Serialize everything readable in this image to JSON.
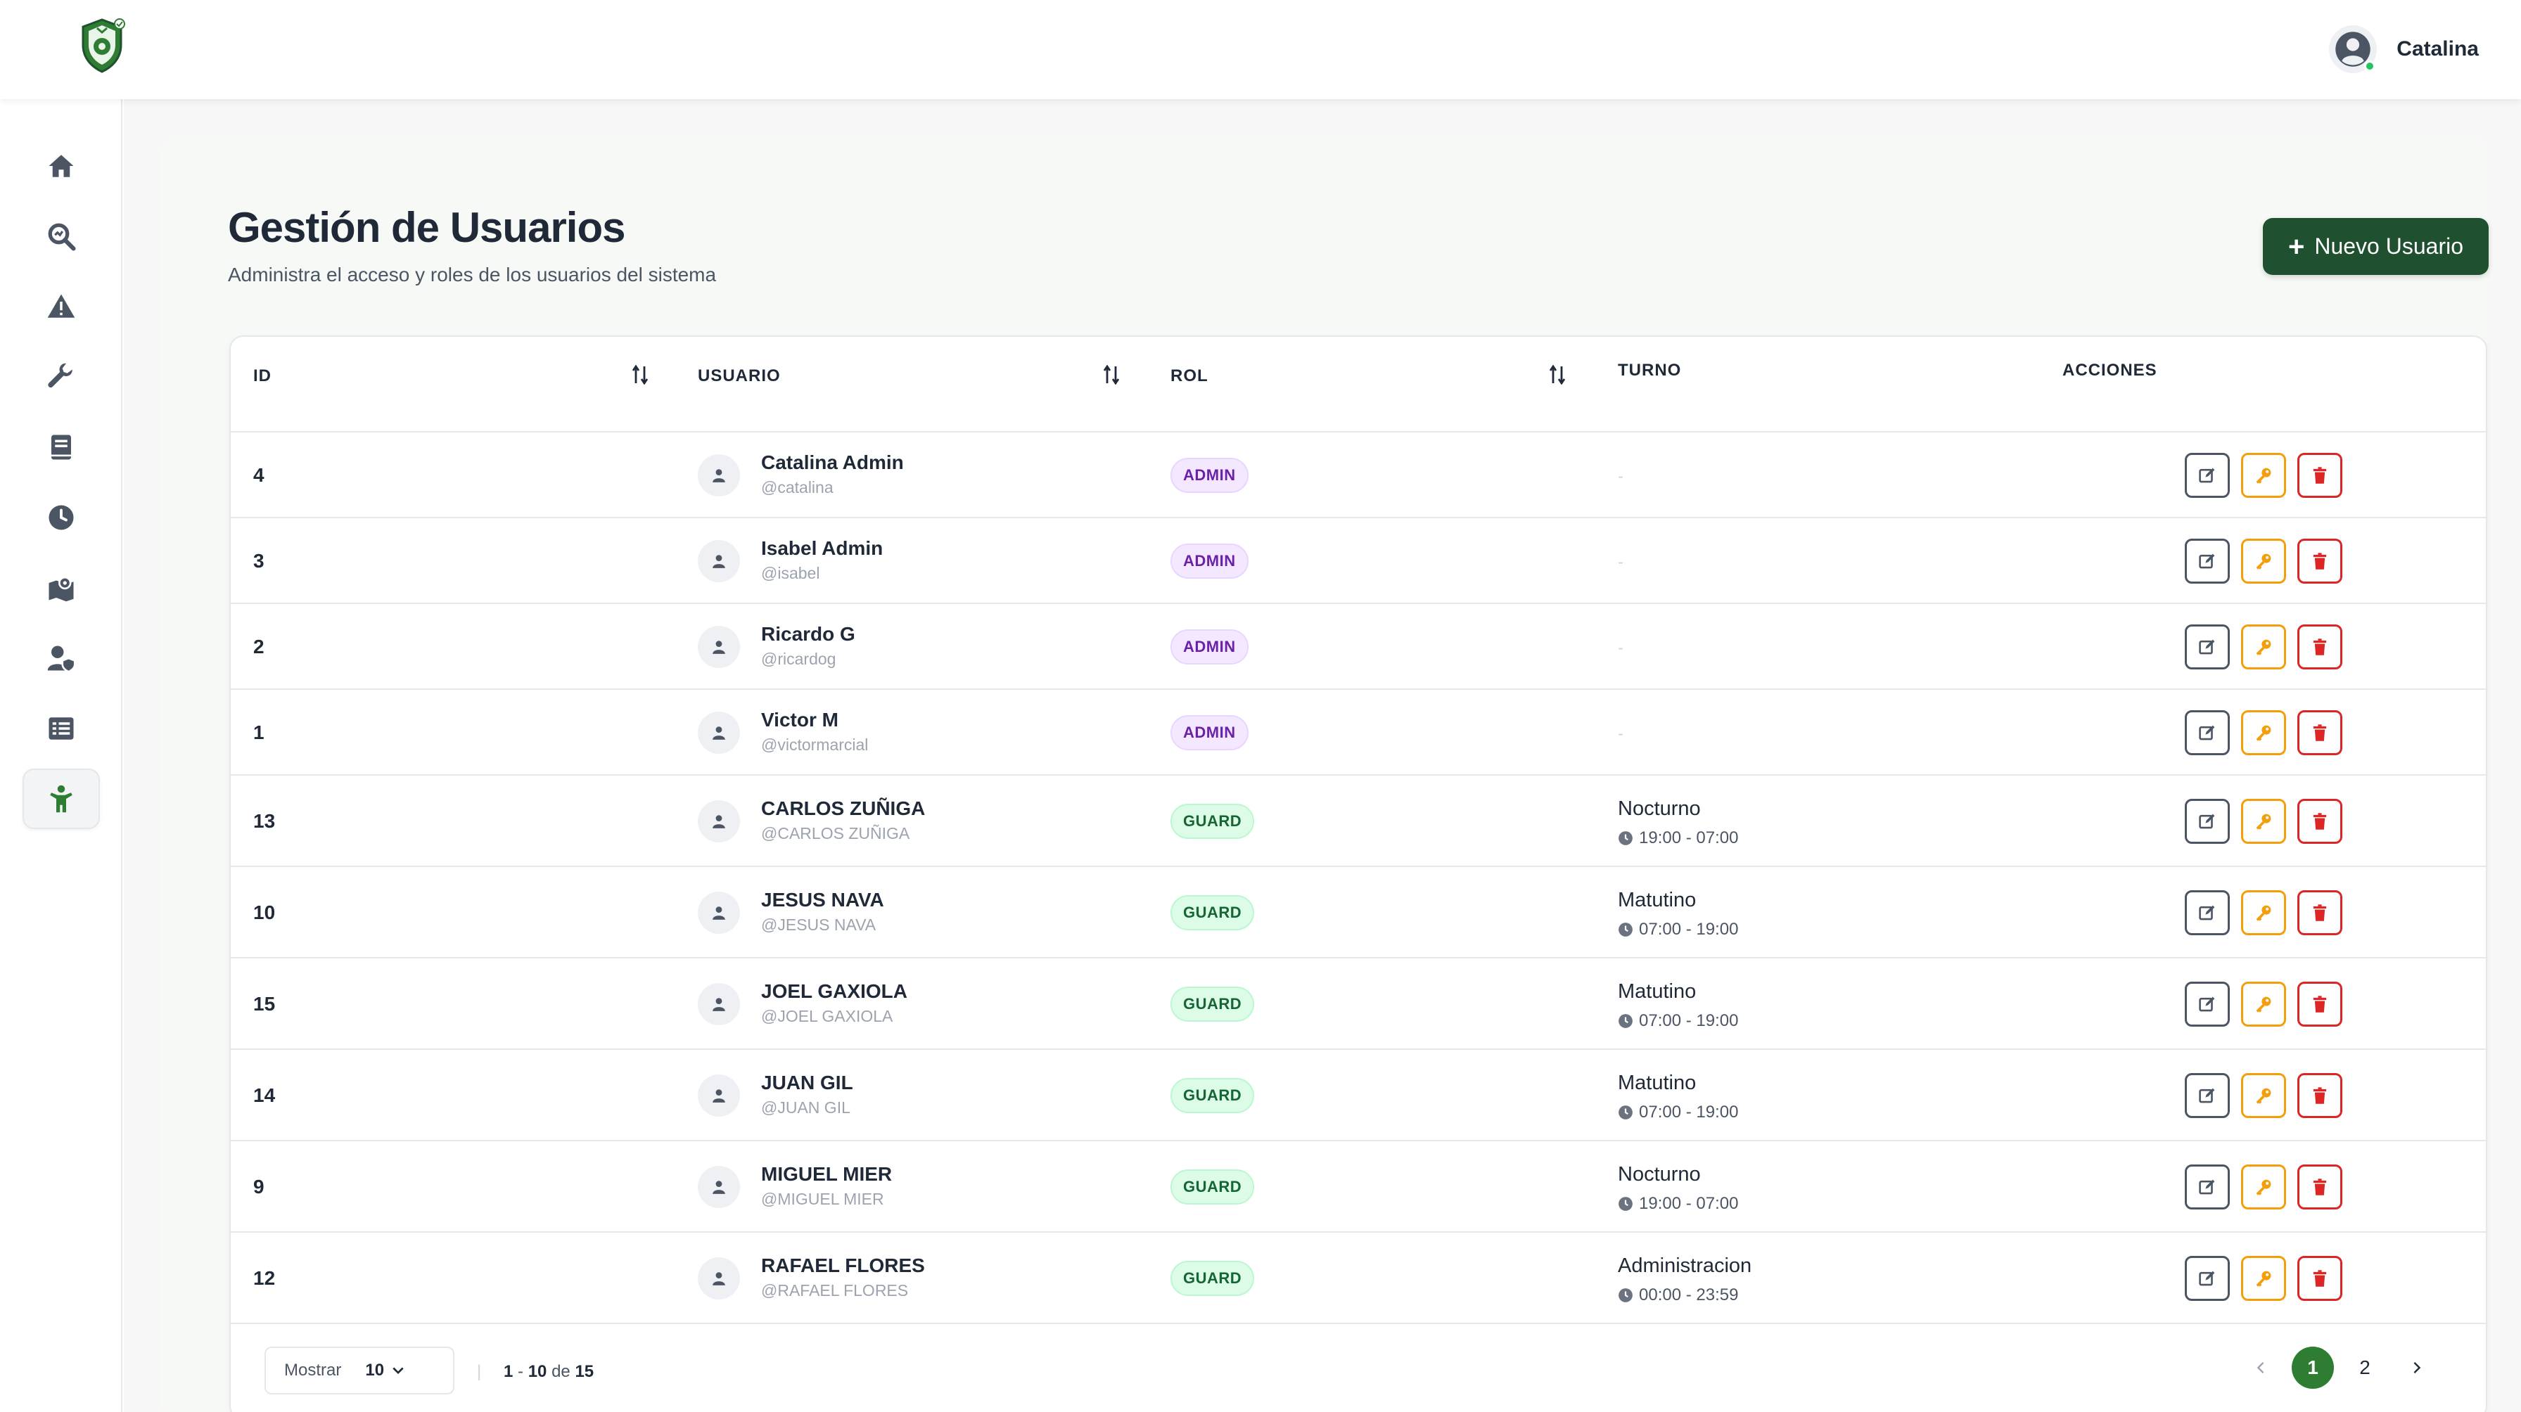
{
  "topbar": {
    "user": {
      "name": "Catalina",
      "status": "online"
    }
  },
  "sidebar": {
    "items": [
      {
        "icon": "home-icon",
        "active": false
      },
      {
        "icon": "search-analytics-icon",
        "active": false
      },
      {
        "icon": "warning-icon",
        "active": false
      },
      {
        "icon": "wrench-icon",
        "active": false
      },
      {
        "icon": "book-icon",
        "active": false
      },
      {
        "icon": "clock-icon",
        "active": false
      },
      {
        "icon": "map-location-icon",
        "active": false
      },
      {
        "icon": "user-shield-icon",
        "active": false
      },
      {
        "icon": "list-icon",
        "active": false
      },
      {
        "icon": "person-icon",
        "active": true
      }
    ]
  },
  "page": {
    "title": "Gestión de Usuarios",
    "subtitle": "Administra el acceso y roles de los usuarios del sistema",
    "new_button_label": "Nuevo Usuario"
  },
  "table": {
    "columns": {
      "id": "ID",
      "user": "USUARIO",
      "role": "ROL",
      "shift": "TURNO",
      "actions": "ACCIONES"
    },
    "rows": [
      {
        "id": "4",
        "name": "Catalina Admin",
        "handle": "@catalina",
        "role": "ADMIN",
        "shift": "-",
        "hours": ""
      },
      {
        "id": "3",
        "name": "Isabel Admin",
        "handle": "@isabel",
        "role": "ADMIN",
        "shift": "-",
        "hours": ""
      },
      {
        "id": "2",
        "name": "Ricardo G",
        "handle": "@ricardog",
        "role": "ADMIN",
        "shift": "-",
        "hours": ""
      },
      {
        "id": "1",
        "name": "Victor M",
        "handle": "@victormarcial",
        "role": "ADMIN",
        "shift": "-",
        "hours": ""
      },
      {
        "id": "13",
        "name": "CARLOS ZUÑIGA",
        "handle": "@CARLOS ZUÑIGA",
        "role": "GUARD",
        "shift": "Nocturno",
        "hours": "19:00 - 07:00"
      },
      {
        "id": "10",
        "name": "JESUS NAVA",
        "handle": "@JESUS NAVA",
        "role": "GUARD",
        "shift": "Matutino",
        "hours": "07:00 - 19:00"
      },
      {
        "id": "15",
        "name": "JOEL GAXIOLA",
        "handle": "@JOEL GAXIOLA",
        "role": "GUARD",
        "shift": "Matutino",
        "hours": "07:00 - 19:00"
      },
      {
        "id": "14",
        "name": "JUAN GIL",
        "handle": "@JUAN GIL",
        "role": "GUARD",
        "shift": "Matutino",
        "hours": "07:00 - 19:00"
      },
      {
        "id": "9",
        "name": "MIGUEL MIER",
        "handle": "@MIGUEL MIER",
        "role": "GUARD",
        "shift": "Nocturno",
        "hours": "19:00 - 07:00"
      },
      {
        "id": "12",
        "name": "RAFAEL FLORES",
        "handle": "@RAFAEL FLORES",
        "role": "GUARD",
        "shift": "Administracion",
        "hours": "00:00 - 23:59"
      }
    ]
  },
  "footer": {
    "show_label": "Mostrar",
    "page_size": "10",
    "range_start": "1",
    "range_end": "10",
    "range_of": "de",
    "total": "15",
    "pages": [
      "1",
      "2"
    ],
    "current_page": "1"
  },
  "colors": {
    "brand_green": "#1f5130",
    "active_page": "#2e7d32",
    "admin_badge": "#6b21a8",
    "guard_badge": "#166534",
    "edit": "#4b5563",
    "key": "#f59e0b",
    "delete": "#dc2626"
  }
}
